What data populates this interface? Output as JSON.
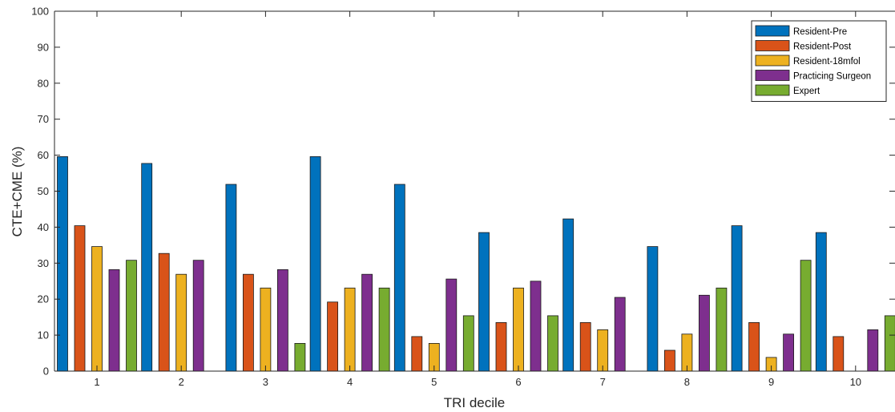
{
  "chart_data": {
    "type": "bar",
    "title": "",
    "xlabel": "TRI decile",
    "ylabel": "CTE+CME (%)",
    "ylim": [
      0,
      100
    ],
    "yticks": [
      0,
      10,
      20,
      30,
      40,
      50,
      60,
      70,
      80,
      90,
      100
    ],
    "categories": [
      "1",
      "2",
      "3",
      "4",
      "5",
      "6",
      "7",
      "8",
      "9",
      "10"
    ],
    "grid": false,
    "legend_position": "top-right",
    "series": [
      {
        "name": "Resident-Pre",
        "color": "#0072BD",
        "values": [
          59.6,
          57.7,
          51.9,
          59.6,
          51.9,
          38.5,
          42.3,
          34.6,
          40.4,
          38.5
        ]
      },
      {
        "name": "Resident-Post",
        "color": "#D95319",
        "values": [
          40.4,
          32.7,
          26.9,
          19.2,
          9.6,
          13.5,
          13.5,
          5.8,
          13.5,
          9.6
        ]
      },
      {
        "name": "Resident-18mfol",
        "color": "#EDB120",
        "values": [
          34.6,
          26.9,
          23.1,
          23.1,
          7.7,
          23.1,
          11.5,
          10.3,
          3.8,
          0
        ]
      },
      {
        "name": "Practicing Surgeon",
        "color": "#7E2F8E",
        "values": [
          28.2,
          30.8,
          28.2,
          26.9,
          25.6,
          25.0,
          20.5,
          21.1,
          10.3,
          11.5
        ]
      },
      {
        "name": "Expert",
        "color": "#77AC30",
        "values": [
          30.8,
          0,
          7.7,
          23.1,
          15.4,
          15.4,
          0,
          23.1,
          30.8,
          15.4
        ]
      }
    ]
  }
}
